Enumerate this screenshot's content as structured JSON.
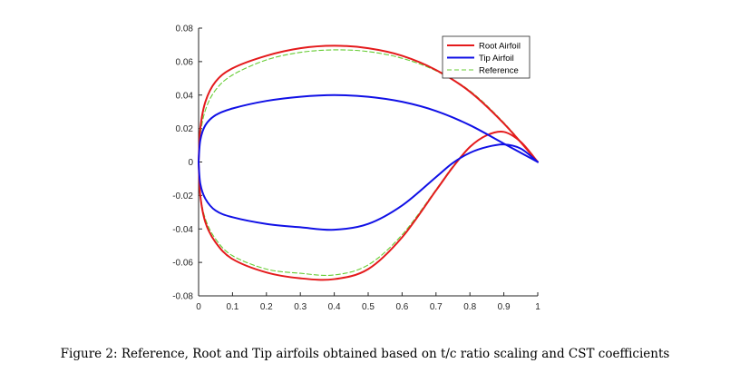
{
  "chart_data": {
    "type": "line",
    "title": "",
    "xlabel": "",
    "ylabel": "",
    "xlim": [
      0,
      1
    ],
    "ylim": [
      -0.08,
      0.08
    ],
    "xticks": [
      "0",
      "0.1",
      "0.2",
      "0.3",
      "0.4",
      "0.5",
      "0.6",
      "0.7",
      "0.8",
      "0.9",
      "1"
    ],
    "yticks": [
      "0.08",
      "0.06",
      "0.04",
      "0.02",
      "0",
      "-0.02",
      "-0.04",
      "-0.06",
      "-0.08"
    ],
    "grid": false,
    "legend_position": "top-right",
    "series": [
      {
        "name": "Root Airfoil",
        "color": "#e41a1c",
        "style": "solid",
        "upper": {
          "x": [
            0,
            0.005,
            0.02,
            0.05,
            0.1,
            0.2,
            0.3,
            0.4,
            0.5,
            0.6,
            0.7,
            0.8,
            0.9,
            1.0
          ],
          "y": [
            0,
            0.02,
            0.036,
            0.048,
            0.056,
            0.0635,
            0.068,
            0.0695,
            0.068,
            0.0635,
            0.055,
            0.042,
            0.023,
            0
          ]
        },
        "lower": {
          "x": [
            0,
            0.005,
            0.02,
            0.05,
            0.1,
            0.2,
            0.3,
            0.4,
            0.5,
            0.6,
            0.7,
            0.75,
            0.8,
            0.85,
            0.9,
            0.95,
            1.0
          ],
          "y": [
            0,
            -0.02,
            -0.036,
            -0.048,
            -0.058,
            -0.066,
            -0.0695,
            -0.07,
            -0.064,
            -0.045,
            -0.017,
            -0.003,
            0.009,
            0.016,
            0.018,
            0.012,
            0
          ]
        }
      },
      {
        "name": "Tip Airfoil",
        "color": "#1010e6",
        "style": "solid",
        "upper": {
          "x": [
            0,
            0.005,
            0.02,
            0.05,
            0.1,
            0.2,
            0.3,
            0.4,
            0.5,
            0.6,
            0.7,
            0.8,
            0.9,
            1.0
          ],
          "y": [
            0,
            0.013,
            0.022,
            0.028,
            0.032,
            0.0365,
            0.039,
            0.04,
            0.039,
            0.036,
            0.0305,
            0.022,
            0.011,
            0
          ]
        },
        "lower": {
          "x": [
            0,
            0.005,
            0.02,
            0.05,
            0.1,
            0.2,
            0.3,
            0.4,
            0.5,
            0.6,
            0.7,
            0.75,
            0.8,
            0.85,
            0.9,
            0.95,
            1.0
          ],
          "y": [
            0,
            -0.013,
            -0.022,
            -0.029,
            -0.033,
            -0.037,
            -0.039,
            -0.0405,
            -0.037,
            -0.026,
            -0.009,
            -0.0005,
            0.0055,
            0.009,
            0.0105,
            0.008,
            0
          ]
        }
      },
      {
        "name": "Reference",
        "color": "#66cc33",
        "style": "dashed",
        "upper": {
          "x": [
            0,
            0.005,
            0.02,
            0.05,
            0.1,
            0.2,
            0.3,
            0.4,
            0.5,
            0.6,
            0.7,
            0.8,
            0.9,
            1.0
          ],
          "y": [
            0,
            0.016,
            0.031,
            0.043,
            0.052,
            0.061,
            0.0655,
            0.067,
            0.066,
            0.062,
            0.0545,
            0.0425,
            0.0235,
            0
          ]
        },
        "lower": {
          "x": [
            0,
            0.005,
            0.02,
            0.05,
            0.1,
            0.2,
            0.3,
            0.4,
            0.5,
            0.6,
            0.7,
            0.75,
            0.8,
            0.85,
            0.9,
            0.95,
            1.0
          ],
          "y": [
            0,
            -0.019,
            -0.034,
            -0.046,
            -0.056,
            -0.064,
            -0.0665,
            -0.0675,
            -0.0615,
            -0.0435,
            -0.0165,
            -0.0025,
            0.009,
            0.016,
            0.018,
            0.012,
            0
          ]
        }
      }
    ]
  },
  "caption": "Figure 2: Reference, Root and Tip airfoils obtained based on t/c ratio scaling and CST coefficients"
}
